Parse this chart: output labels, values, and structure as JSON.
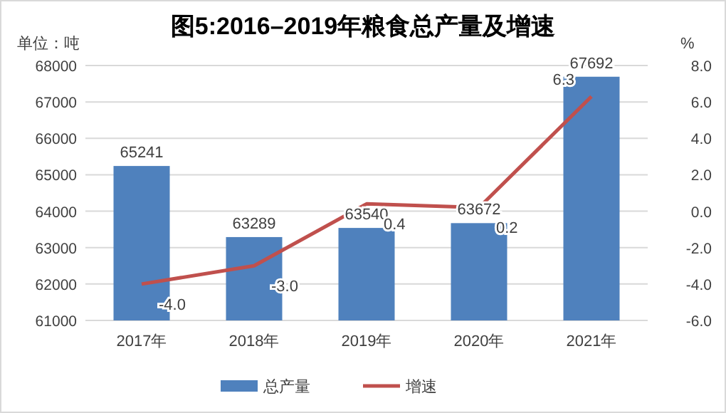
{
  "chart_data": {
    "type": "bar",
    "title": "图5:2016–2019年粮食总产量及增速",
    "ylabel": "单位：吨",
    "y2label": "%",
    "categories": [
      "2017年",
      "2018年",
      "2019年",
      "2020年",
      "2021年"
    ],
    "series": [
      {
        "name": "总产量",
        "color": "#4f81bd",
        "values": [
          65241,
          63289,
          63540,
          63672,
          67692
        ],
        "value_labels": [
          "65241",
          "63289",
          "63540",
          "63672",
          "67692"
        ]
      },
      {
        "name": "增速",
        "type": "line",
        "axis": "y2",
        "color": "#c0504d",
        "values": [
          -4.0,
          -3.0,
          0.4,
          0.2,
          6.3
        ],
        "value_labels": [
          "-4.0",
          "-3.0",
          "0.4",
          "0.2",
          "6.3"
        ]
      }
    ],
    "ylim": [
      61000,
      68000
    ],
    "yticks": [
      61000,
      62000,
      63000,
      64000,
      65000,
      66000,
      67000,
      68000
    ],
    "y2lim": [
      -6,
      8
    ],
    "y2ticks": [
      {
        "value": -6,
        "label": "-6.0"
      },
      {
        "value": -4,
        "label": "-4.0"
      },
      {
        "value": -2,
        "label": "-2.0"
      },
      {
        "value": 0,
        "label": "0.0"
      },
      {
        "value": 2,
        "label": "2.0"
      },
      {
        "value": 4,
        "label": "4.0"
      },
      {
        "value": 6,
        "label": "6.0"
      },
      {
        "value": 8,
        "label": "8.0"
      }
    ],
    "grid": "y",
    "legend": "bottom",
    "marker": "none"
  }
}
